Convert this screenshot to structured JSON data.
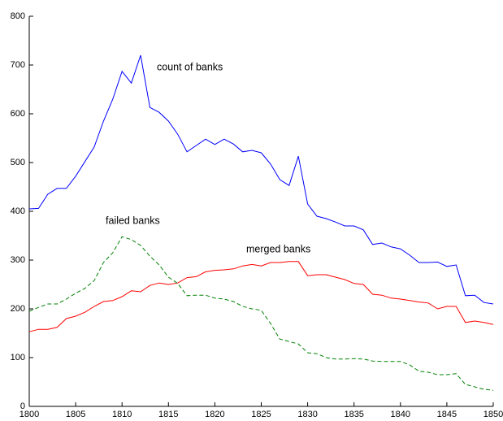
{
  "chart_data": {
    "type": "line",
    "x": [
      1800,
      1801,
      1802,
      1803,
      1804,
      1805,
      1806,
      1807,
      1808,
      1809,
      1810,
      1811,
      1812,
      1813,
      1814,
      1815,
      1816,
      1817,
      1818,
      1819,
      1820,
      1821,
      1822,
      1823,
      1824,
      1825,
      1826,
      1827,
      1828,
      1829,
      1830,
      1831,
      1832,
      1833,
      1834,
      1835,
      1836,
      1837,
      1838,
      1839,
      1840,
      1841,
      1842,
      1843,
      1844,
      1845,
      1846,
      1847,
      1848,
      1849,
      1850
    ],
    "series": [
      {
        "name": "count of banks",
        "color": "#0000ff",
        "linestyle": "solid",
        "values": [
          405,
          406,
          435,
          447,
          447,
          472,
          502,
          532,
          585,
          630,
          687,
          663,
          720,
          613,
          603,
          585,
          558,
          522,
          535,
          548,
          537,
          548,
          538,
          522,
          525,
          520,
          497,
          465,
          453,
          513,
          415,
          390,
          385,
          378,
          370,
          370,
          362,
          332,
          335,
          327,
          323,
          310,
          295,
          295,
          296,
          287,
          290,
          227,
          228,
          213,
          210
        ]
      },
      {
        "name": "merged banks",
        "color": "#ff0000",
        "linestyle": "solid",
        "values": [
          153,
          158,
          158,
          162,
          180,
          185,
          193,
          205,
          215,
          217,
          225,
          237,
          235,
          248,
          253,
          250,
          253,
          264,
          266,
          276,
          279,
          280,
          282,
          288,
          291,
          288,
          295,
          295,
          297,
          297,
          268,
          270,
          270,
          265,
          260,
          252,
          250,
          230,
          228,
          222,
          220,
          217,
          214,
          212,
          200,
          205,
          205,
          172,
          175,
          172,
          168
        ]
      },
      {
        "name": "failed banks",
        "color": "#008000",
        "linestyle": "dashed",
        "values": [
          195,
          203,
          210,
          210,
          220,
          232,
          242,
          258,
          295,
          315,
          348,
          342,
          330,
          308,
          290,
          265,
          252,
          227,
          228,
          228,
          222,
          220,
          215,
          205,
          200,
          197,
          170,
          138,
          133,
          128,
          110,
          108,
          100,
          97,
          97,
          98,
          97,
          93,
          92,
          92,
          92,
          85,
          72,
          70,
          65,
          65,
          67,
          45,
          40,
          35,
          33
        ]
      }
    ],
    "xlim": [
      1800,
      1850
    ],
    "xticks": [
      1800,
      1805,
      1810,
      1815,
      1820,
      1825,
      1830,
      1835,
      1840,
      1845,
      1850
    ],
    "ylim": [
      0,
      800
    ],
    "yticks": [
      0,
      100,
      200,
      300,
      400,
      500,
      600,
      700,
      800
    ]
  }
}
